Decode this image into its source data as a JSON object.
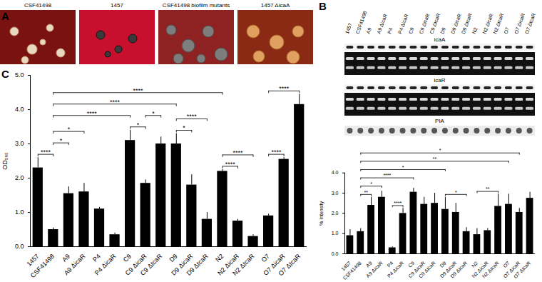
{
  "panel_labels": {
    "a": "A",
    "b": "B",
    "c": "C"
  },
  "panel_a": {
    "images": [
      "CSF41498",
      "1457",
      "CSF41498 biofilm mutants",
      "1457 ΔicaA"
    ]
  },
  "panel_b_blots": {
    "lanes": [
      "1457",
      "CSF41498",
      "A9",
      "A9 ΔicaR",
      "P4",
      "P4 ΔicaR",
      "C9",
      "C9 ΔicaR",
      "C9 ΔtcaR",
      "D9",
      "D9 ΔicaR",
      "D9 ΔtcaR",
      "N2",
      "N2 ΔicaR",
      "N2 ΔtcaR",
      "O7",
      "O7 ΔicaR",
      "O7 ΔtcaR"
    ],
    "rows": [
      "icaA",
      "icaR",
      "PIA"
    ]
  },
  "chart_data": [
    {
      "type": "bar",
      "ylabel": "OD₅₉₅",
      "color": "#000000",
      "categories": [
        "1457",
        "CSF41498",
        "A9",
        "A9 ΔicaR",
        "P4",
        "P4 ΔicaR",
        "C9",
        "C9 ΔicaR",
        "C9 ΔtcaR",
        "D9",
        "D9 ΔicaR",
        "D9 ΔtcaR",
        "N2",
        "N2 ΔicaR",
        "N2 ΔtcaR",
        "O7",
        "O7 ΔicaR",
        "O7 ΔtcaR"
      ],
      "values": [
        2.3,
        0.5,
        1.55,
        1.6,
        1.1,
        0.35,
        3.1,
        1.85,
        3.0,
        3.0,
        1.8,
        0.8,
        2.2,
        0.75,
        0.3,
        0.9,
        2.55,
        4.15
      ],
      "errors": [
        0.3,
        0.05,
        0.2,
        0.25,
        0.05,
        0.05,
        0.3,
        0.1,
        0.2,
        0.3,
        0.3,
        0.2,
        0.05,
        0.05,
        0.05,
        0.05,
        0.05,
        0.3
      ],
      "ylim": [
        0,
        5
      ],
      "yticks": [
        0,
        1,
        2,
        3,
        4,
        5
      ],
      "significance": [
        {
          "from": "1457",
          "to": "CSF41498",
          "label": "****"
        },
        {
          "from": "CSF41498",
          "to": "A9",
          "label": "*"
        },
        {
          "from": "CSF41498",
          "to": "A9 ΔicaR",
          "label": "*"
        },
        {
          "from": "C9",
          "to": "C9 ΔicaR",
          "label": "*"
        },
        {
          "from": "C9 ΔicaR",
          "to": "C9 ΔtcaR",
          "label": "*"
        },
        {
          "from": "D9",
          "to": "D9 ΔicaR",
          "label": "*"
        },
        {
          "from": "D9",
          "to": "D9 ΔtcaR",
          "label": "****"
        },
        {
          "from": "N2",
          "to": "N2 ΔicaR",
          "label": "****"
        },
        {
          "from": "N2",
          "to": "N2 ΔtcaR",
          "label": "****"
        },
        {
          "from": "O7",
          "to": "O7 ΔicaR",
          "label": "****"
        },
        {
          "from": "O7",
          "to": "O7 ΔtcaR",
          "label": "****"
        },
        {
          "from": "CSF41498",
          "to": "C9",
          "label": "****"
        },
        {
          "from": "CSF41498",
          "to": "D9",
          "label": "****"
        },
        {
          "from": "CSF41498",
          "to": "N2",
          "label": "****"
        }
      ]
    },
    {
      "type": "bar",
      "ylabel": "% Intensity",
      "color": "#000000",
      "categories": [
        "1457",
        "CSF41498",
        "A9",
        "A9 ΔicaR",
        "P4",
        "P4 ΔicaR",
        "C9",
        "C9 ΔicaR",
        "C9 ΔtcaR",
        "D9",
        "D9 ΔicaR",
        "D9 ΔtcaR",
        "N2",
        "N2 ΔicaR",
        "N2 ΔtcaR",
        "O7",
        "O7 ΔicaR",
        "O7 ΔtcaR"
      ],
      "values": [
        0.9,
        1.1,
        2.4,
        2.8,
        0.3,
        2.0,
        3.05,
        2.45,
        2.5,
        2.2,
        2.05,
        1.1,
        0.95,
        1.15,
        2.35,
        2.45,
        2.05,
        2.75
      ],
      "errors": [
        0.3,
        0.15,
        0.4,
        0.3,
        0.05,
        0.25,
        0.2,
        0.35,
        0.5,
        0.6,
        0.45,
        0.2,
        0.3,
        0.1,
        0.6,
        0.5,
        0.2,
        0.3
      ],
      "ylim": [
        0,
        4
      ],
      "yticks": [
        0,
        1,
        2,
        3,
        4
      ],
      "significance": [
        {
          "from": "CSF41498",
          "to": "A9",
          "label": "**"
        },
        {
          "from": "CSF41498",
          "to": "A9 ΔicaR",
          "label": "*"
        },
        {
          "from": "P4",
          "to": "P4 ΔicaR",
          "label": "****"
        },
        {
          "from": "CSF41498",
          "to": "C9",
          "label": "****"
        },
        {
          "from": "CSF41498",
          "to": "D9",
          "label": "*"
        },
        {
          "from": "D9",
          "to": "D9 ΔtcaR",
          "label": "*"
        },
        {
          "from": "N2",
          "to": "N2 ΔtcaR",
          "label": "**"
        },
        {
          "from": "CSF41498",
          "to": "O7",
          "label": "**"
        },
        {
          "from": "CSF41498",
          "to": "O7 ΔicaR",
          "label": "*"
        }
      ]
    }
  ]
}
